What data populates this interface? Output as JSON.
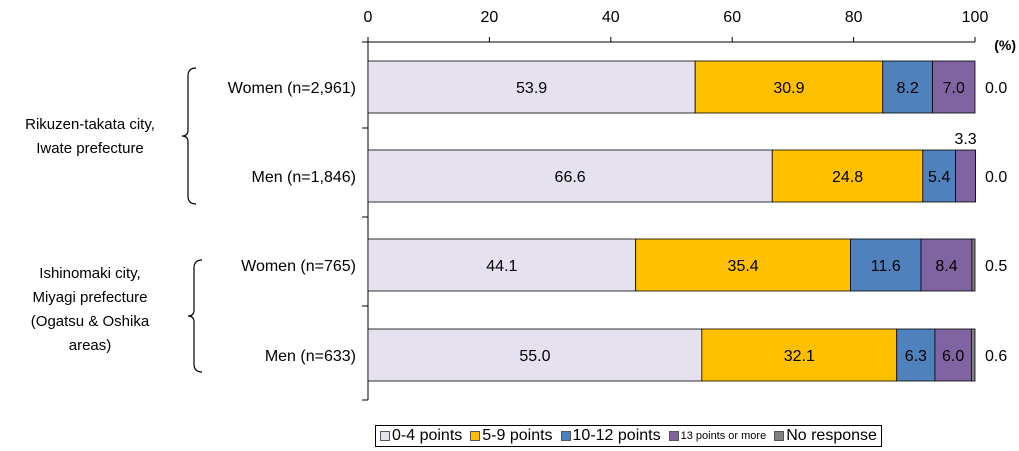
{
  "chart_data": {
    "type": "bar",
    "orientation": "horizontal",
    "stacked": true,
    "unit_label": "(%)",
    "xlim": [
      0,
      100
    ],
    "x_ticks": [
      "0",
      "20",
      "40",
      "60",
      "80",
      "100"
    ],
    "groups": [
      {
        "label_lines": [
          "Rikuzen-takata city,",
          "Iwate prefecture"
        ],
        "rows": [
          {
            "label": "Women (n=2,961)",
            "values": [
              53.9,
              30.9,
              8.2,
              7.0,
              0.0
            ],
            "value_labels": [
              "53.9",
              "30.9",
              "8.2",
              "7.0",
              "0.0"
            ]
          },
          {
            "label": "Men (n=1,846)",
            "values": [
              66.6,
              24.8,
              5.4,
              3.3,
              0.0
            ],
            "value_labels": [
              "66.6",
              "24.8",
              "5.4",
              "3.3",
              "0.0"
            ]
          }
        ]
      },
      {
        "label_lines": [
          "Ishinomaki city,",
          "Miyagi prefecture",
          "(Ogatsu & Oshika",
          "areas)"
        ],
        "rows": [
          {
            "label": "Women (n=765)",
            "values": [
              44.1,
              35.4,
              11.6,
              8.4,
              0.5
            ],
            "value_labels": [
              "44.1",
              "35.4",
              "11.6",
              "8.4",
              "0.5"
            ]
          },
          {
            "label": "Men (n=633)",
            "values": [
              55.0,
              32.1,
              6.3,
              6.0,
              0.6
            ],
            "value_labels": [
              "55.0",
              "32.1",
              "6.3",
              "6.0",
              "0.6"
            ]
          }
        ]
      }
    ],
    "series": [
      {
        "name": "0-4 points",
        "color": "#e6e1ee"
      },
      {
        "name": "5-9 points",
        "color": "#ffc000"
      },
      {
        "name": "10-12 points",
        "color": "#4f81bd"
      },
      {
        "name": "13 points or more",
        "color": "#8064a2"
      },
      {
        "name": "No response",
        "color": "#808080"
      }
    ],
    "legend_position": "bottom",
    "grid": false
  }
}
